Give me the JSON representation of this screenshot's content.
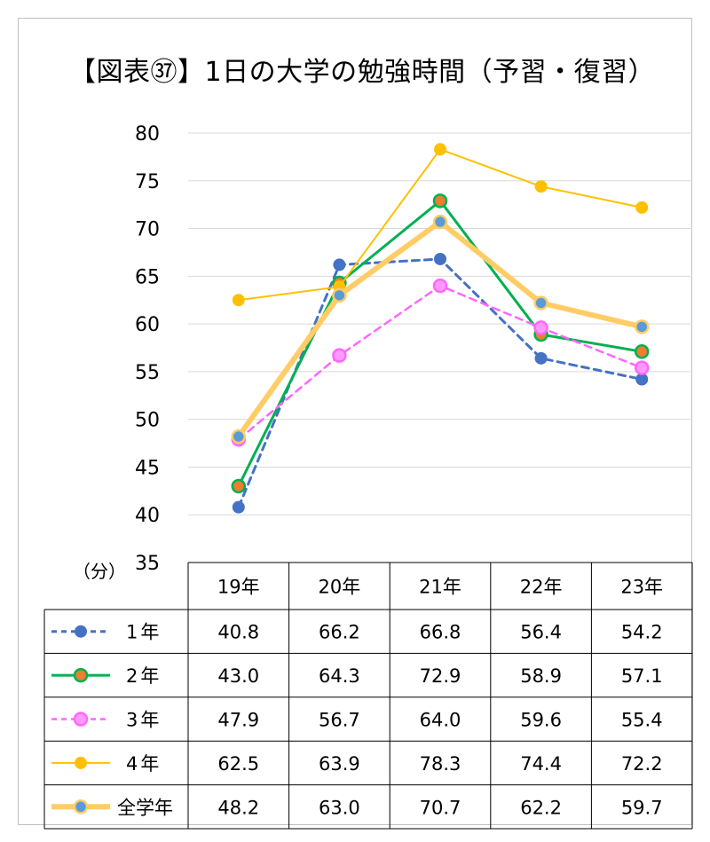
{
  "title": "【図表㊲】1日の大学の勉強時間（予習・復習）",
  "unit_label": "（分）",
  "chart_data": {
    "type": "line",
    "title": "【図表㊲】1日の大学の勉強時間（予習・復習）",
    "categories": [
      "19年",
      "20年",
      "21年",
      "22年",
      "23年"
    ],
    "yticks": [
      "35",
      "40",
      "45",
      "50",
      "55",
      "60",
      "65",
      "70",
      "75",
      "80"
    ],
    "ylim": [
      35,
      80
    ],
    "grid": true,
    "legend": "table-bottom",
    "series": [
      {
        "name": "1年",
        "values": [
          40.8,
          66.2,
          66.8,
          56.4,
          54.2
        ],
        "labels": [
          "40.8",
          "66.2",
          "66.8",
          "56.4",
          "54.2"
        ],
        "color": "#4472c4",
        "marker_color": "#4472c4",
        "dash": "8,6",
        "width": 3
      },
      {
        "name": "2年",
        "values": [
          43.0,
          64.3,
          72.9,
          58.9,
          57.1
        ],
        "labels": [
          "43.0",
          "64.3",
          "72.9",
          "58.9",
          "57.1"
        ],
        "color": "#00b050",
        "marker_color": "#ed7d31",
        "dash": "",
        "width": 3
      },
      {
        "name": "3年",
        "values": [
          47.9,
          56.7,
          64.0,
          59.6,
          55.4
        ],
        "labels": [
          "47.9",
          "56.7",
          "64.0",
          "59.6",
          "55.4"
        ],
        "color": "#ff66ff",
        "marker_color": "#ff99ff",
        "dash": "8,6",
        "width": 2.5
      },
      {
        "name": "4年",
        "values": [
          62.5,
          63.9,
          78.3,
          74.4,
          72.2
        ],
        "labels": [
          "62.5",
          "63.9",
          "78.3",
          "74.4",
          "72.2"
        ],
        "color": "#ffc000",
        "marker_color": "#ffc000",
        "dash": "",
        "width": 2
      },
      {
        "name": "全学年",
        "values": [
          48.2,
          63.0,
          70.7,
          62.2,
          59.7
        ],
        "labels": [
          "48.2",
          "63.0",
          "70.7",
          "62.2",
          "59.7"
        ],
        "color": "#ffcc66",
        "marker_color": "#5b9bd5",
        "dash": "",
        "width": 6
      }
    ]
  }
}
